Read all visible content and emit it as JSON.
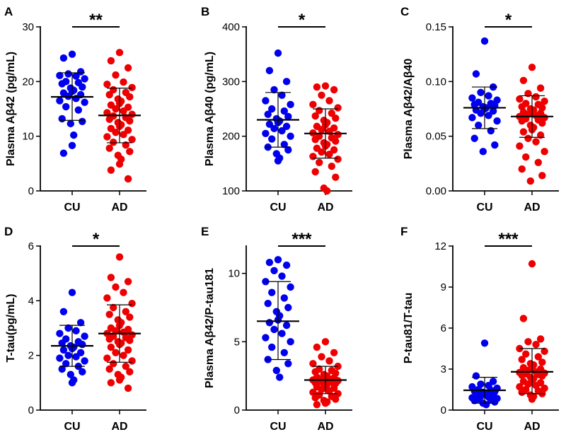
{
  "chart_data": [
    {
      "type": "scatter",
      "panel": "A",
      "ylabel": "Plasma Aβ42 (pg/mL)",
      "categories": [
        "CU",
        "AD"
      ],
      "ylim": [
        0,
        30
      ],
      "yticks": [
        0,
        10,
        20,
        30
      ],
      "tick_labels": [
        "0",
        "10",
        "20",
        "30"
      ],
      "significance": "**",
      "colors": [
        "#0000ee",
        "#ee0000"
      ],
      "series": [
        {
          "name": "CU",
          "mean": 17.2,
          "sd_low": 12.9,
          "sd_high": 21.6,
          "values": [
            25.0,
            24.3,
            21.8,
            21.4,
            21.0,
            21.1,
            20.5,
            20.0,
            19.8,
            19.6,
            19.0,
            18.8,
            18.4,
            18.2,
            17.9,
            17.6,
            17.3,
            16.9,
            16.5,
            16.2,
            15.4,
            14.8,
            13.2,
            12.7,
            12.3,
            10.2,
            8.3,
            6.9
          ]
        },
        {
          "name": "AD",
          "mean": 13.8,
          "sd_low": 8.8,
          "sd_high": 18.8,
          "values": [
            25.3,
            23.8,
            22.5,
            21.2,
            19.9,
            19.5,
            18.9,
            18.5,
            18.0,
            17.6,
            17.2,
            16.8,
            16.4,
            16.0,
            15.7,
            15.3,
            15.0,
            14.6,
            14.3,
            14.0,
            13.7,
            13.4,
            13.1,
            12.8,
            12.5,
            12.1,
            11.8,
            11.4,
            11.1,
            10.7,
            10.3,
            9.9,
            9.4,
            8.9,
            8.4,
            7.8,
            7.2,
            6.5,
            5.8,
            4.9,
            3.8,
            2.2
          ]
        }
      ]
    },
    {
      "type": "scatter",
      "panel": "B",
      "ylabel": "Plasma Aβ40 (pg/mL)",
      "categories": [
        "CU",
        "AD"
      ],
      "ylim": [
        100,
        400
      ],
      "yticks": [
        100,
        200,
        300,
        400
      ],
      "tick_labels": [
        "100",
        "200",
        "300",
        "400"
      ],
      "significance": "*",
      "colors": [
        "#0000ee",
        "#ee0000"
      ],
      "series": [
        {
          "name": "CU",
          "mean": 230,
          "sd_low": 180,
          "sd_high": 280,
          "values": [
            352,
            320,
            300,
            285,
            275,
            265,
            258,
            250,
            246,
            240,
            236,
            232,
            228,
            225,
            222,
            218,
            214,
            210,
            205,
            200,
            195,
            185,
            180,
            175,
            168,
            160,
            155
          ]
        },
        {
          "name": "AD",
          "mean": 205,
          "sd_low": 160,
          "sd_high": 250,
          "values": [
            292,
            290,
            285,
            275,
            265,
            258,
            252,
            247,
            242,
            237,
            233,
            229,
            225,
            221,
            218,
            215,
            212,
            209,
            206,
            203,
            200,
            197,
            194,
            191,
            188,
            185,
            182,
            178,
            175,
            171,
            167,
            163,
            158,
            152,
            145,
            135,
            125,
            105,
            100
          ]
        }
      ]
    },
    {
      "type": "scatter",
      "panel": "C",
      "ylabel": "Plasma Aβ42/Aβ40",
      "categories": [
        "CU",
        "AD"
      ],
      "ylim": [
        0,
        0.15
      ],
      "yticks": [
        0,
        0.05,
        0.1,
        0.15
      ],
      "tick_labels": [
        "0.00",
        "0.05",
        "0.10",
        "0.15"
      ],
      "significance": "*",
      "colors": [
        "#0000ee",
        "#ee0000"
      ],
      "series": [
        {
          "name": "CU",
          "mean": 0.076,
          "sd_low": 0.057,
          "sd_high": 0.095,
          "values": [
            0.137,
            0.107,
            0.095,
            0.09,
            0.087,
            0.085,
            0.083,
            0.081,
            0.08,
            0.079,
            0.078,
            0.077,
            0.076,
            0.075,
            0.074,
            0.073,
            0.071,
            0.069,
            0.067,
            0.064,
            0.06,
            0.055,
            0.048,
            0.042,
            0.036
          ]
        },
        {
          "name": "AD",
          "mean": 0.068,
          "sd_low": 0.049,
          "sd_high": 0.087,
          "values": [
            0.113,
            0.101,
            0.094,
            0.089,
            0.086,
            0.084,
            0.082,
            0.08,
            0.079,
            0.077,
            0.076,
            0.075,
            0.074,
            0.073,
            0.072,
            0.071,
            0.07,
            0.069,
            0.068,
            0.067,
            0.066,
            0.065,
            0.064,
            0.062,
            0.06,
            0.058,
            0.056,
            0.054,
            0.051,
            0.048,
            0.045,
            0.041,
            0.036,
            0.031,
            0.026,
            0.02,
            0.014,
            0.009
          ]
        }
      ]
    },
    {
      "type": "scatter",
      "panel": "D",
      "ylabel": "T-tau(pg/mL)",
      "categories": [
        "CU",
        "AD"
      ],
      "ylim": [
        0,
        6
      ],
      "yticks": [
        0,
        2,
        4,
        6
      ],
      "tick_labels": [
        "0",
        "2",
        "4",
        "6"
      ],
      "significance": "*",
      "colors": [
        "#0000ee",
        "#ee0000"
      ],
      "series": [
        {
          "name": "CU",
          "mean": 2.35,
          "sd_low": 1.6,
          "sd_high": 3.1,
          "values": [
            4.3,
            3.6,
            3.2,
            3.0,
            2.9,
            2.8,
            2.7,
            2.6,
            2.5,
            2.45,
            2.4,
            2.35,
            2.3,
            2.25,
            2.2,
            2.1,
            2.0,
            1.95,
            1.9,
            1.8,
            1.7,
            1.6,
            1.5,
            1.4,
            1.3,
            1.1,
            1.0
          ]
        },
        {
          "name": "AD",
          "mean": 2.8,
          "sd_low": 1.75,
          "sd_high": 3.85,
          "values": [
            5.6,
            4.85,
            4.7,
            4.5,
            4.3,
            4.1,
            3.9,
            3.75,
            3.6,
            3.5,
            3.4,
            3.3,
            3.2,
            3.1,
            3.0,
            2.95,
            2.9,
            2.85,
            2.8,
            2.75,
            2.7,
            2.65,
            2.6,
            2.55,
            2.5,
            2.45,
            2.4,
            2.3,
            2.2,
            2.1,
            2.0,
            1.9,
            1.8,
            1.7,
            1.6,
            1.5,
            1.4,
            1.3,
            1.2,
            1.1,
            1.0,
            0.8
          ]
        }
      ]
    },
    {
      "type": "scatter",
      "panel": "E",
      "ylabel": "Plasma Aβ42/P-tau181",
      "categories": [
        "CU",
        "AD"
      ],
      "ylim": [
        0,
        12
      ],
      "yticks": [
        0,
        5,
        10
      ],
      "tick_labels": [
        "0",
        "5",
        "10"
      ],
      "significance": "***",
      "colors": [
        "#0000ee",
        "#ee0000"
      ],
      "series": [
        {
          "name": "CU",
          "mean": 6.5,
          "sd_low": 3.7,
          "sd_high": 9.4,
          "values": [
            11.0,
            10.8,
            10.6,
            10.2,
            9.8,
            9.4,
            9.0,
            8.6,
            8.2,
            7.8,
            7.5,
            7.2,
            6.9,
            6.6,
            6.4,
            6.2,
            5.9,
            5.6,
            5.3,
            5.0,
            4.6,
            4.2,
            3.7,
            3.4,
            2.9,
            2.4
          ]
        },
        {
          "name": "AD",
          "mean": 2.2,
          "sd_low": 1.2,
          "sd_high": 3.2,
          "values": [
            5.0,
            4.6,
            4.2,
            3.9,
            3.6,
            3.4,
            3.2,
            3.0,
            2.9,
            2.8,
            2.7,
            2.6,
            2.5,
            2.45,
            2.4,
            2.35,
            2.3,
            2.25,
            2.2,
            2.15,
            2.1,
            2.05,
            2.0,
            1.95,
            1.9,
            1.85,
            1.8,
            1.7,
            1.6,
            1.5,
            1.4,
            1.3,
            1.2,
            1.1,
            1.0,
            0.9,
            0.8,
            0.7,
            0.6,
            0.5,
            0.4
          ]
        }
      ]
    },
    {
      "type": "scatter",
      "panel": "F",
      "ylabel": "P-tau81/T-tau",
      "categories": [
        "CU",
        "AD"
      ],
      "ylim": [
        0,
        12
      ],
      "yticks": [
        0,
        3,
        6,
        9,
        12
      ],
      "tick_labels": [
        "0",
        "3",
        "6",
        "9",
        "12"
      ],
      "significance": "***",
      "colors": [
        "#0000ee",
        "#ee0000"
      ],
      "series": [
        {
          "name": "CU",
          "mean": 1.45,
          "sd_low": 0.5,
          "sd_high": 2.4,
          "values": [
            4.9,
            2.5,
            2.1,
            1.9,
            1.8,
            1.7,
            1.6,
            1.5,
            1.45,
            1.4,
            1.35,
            1.3,
            1.25,
            1.2,
            1.15,
            1.1,
            1.0,
            0.95,
            0.9,
            0.85,
            0.8,
            0.75,
            0.7,
            0.6,
            0.5,
            0.4
          ]
        },
        {
          "name": "AD",
          "mean": 2.8,
          "sd_low": 1.2,
          "sd_high": 4.5,
          "values": [
            10.7,
            6.7,
            5.2,
            5.0,
            4.8,
            4.5,
            4.3,
            4.1,
            3.9,
            3.7,
            3.5,
            3.4,
            3.3,
            3.2,
            3.1,
            3.0,
            2.9,
            2.8,
            2.75,
            2.7,
            2.65,
            2.6,
            2.55,
            2.5,
            2.4,
            2.3,
            2.2,
            2.1,
            2.0,
            1.9,
            1.8,
            1.7,
            1.6,
            1.5,
            1.4,
            1.3,
            1.2,
            1.1,
            1.0,
            0.8
          ]
        }
      ]
    }
  ]
}
